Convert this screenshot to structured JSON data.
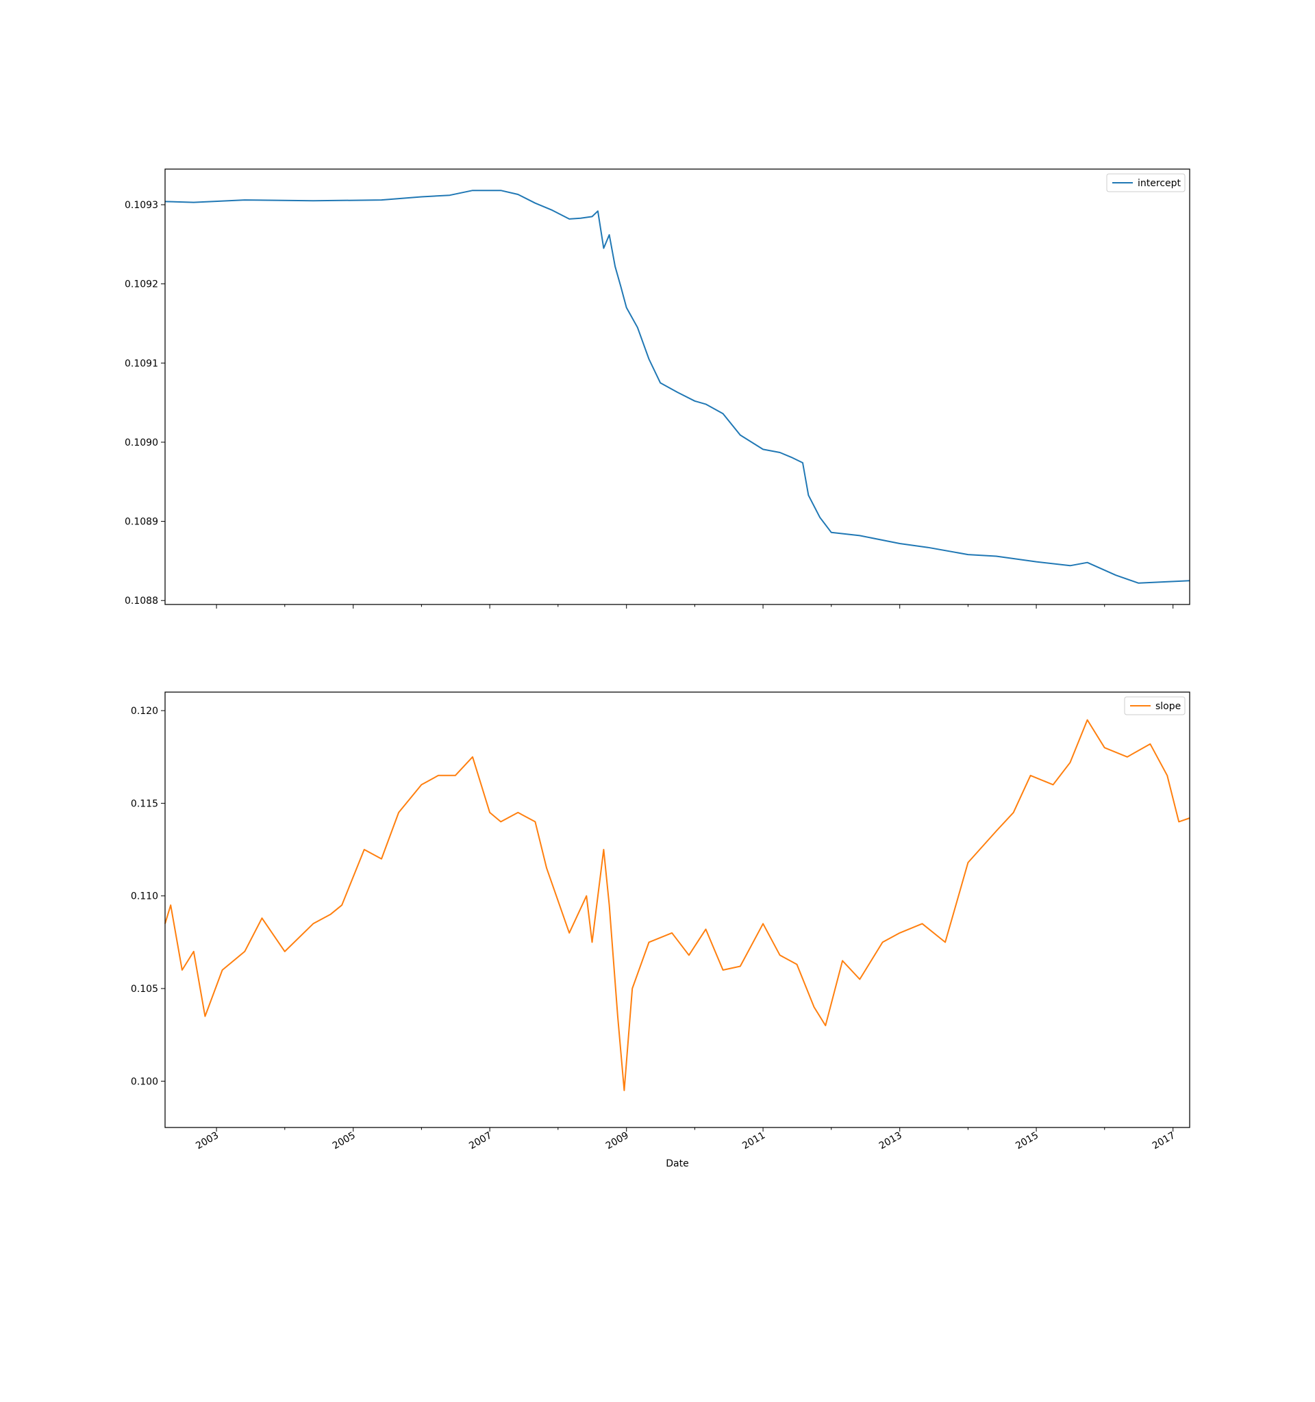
{
  "chart_data": [
    {
      "type": "line",
      "title": "",
      "xlabel": "",
      "ylabel": "",
      "xlim": [
        "2002-04-01",
        "2017-03-31"
      ],
      "ylim": [
        0.108795,
        0.109345
      ],
      "yticks": [
        "0.1088",
        "0.1089",
        "0.1090",
        "0.1091",
        "0.1092",
        "0.1093"
      ],
      "xticks_labels_visible": false,
      "grid": false,
      "legend": {
        "position": "top-right",
        "entries": [
          "intercept"
        ]
      },
      "series": [
        {
          "name": "intercept",
          "color": "#1f77b4",
          "x": [
            "2002-04-01",
            "2002-09-01",
            "2003-06-01",
            "2004-06-01",
            "2005-06-01",
            "2006-01-01",
            "2006-06-01",
            "2006-10-01",
            "2007-03-01",
            "2007-06-01",
            "2007-09-01",
            "2007-12-01",
            "2008-03-01",
            "2008-05-01",
            "2008-07-01",
            "2008-08-01",
            "2008-09-01",
            "2008-10-01",
            "2008-11-01",
            "2008-12-01",
            "2009-01-01",
            "2009-03-01",
            "2009-05-01",
            "2009-07-01",
            "2009-10-01",
            "2010-01-01",
            "2010-03-01",
            "2010-06-01",
            "2010-09-01",
            "2011-01-01",
            "2011-04-01",
            "2011-06-01",
            "2011-08-01",
            "2011-09-01",
            "2011-11-01",
            "2012-01-01",
            "2012-06-01",
            "2013-01-01",
            "2013-06-01",
            "2014-01-01",
            "2014-06-01",
            "2015-01-01",
            "2015-07-01",
            "2015-10-01",
            "2016-03-01",
            "2016-07-01",
            "2017-03-31"
          ],
          "y": [
            0.109304,
            0.109303,
            0.109306,
            0.109305,
            0.109306,
            0.10931,
            0.109312,
            0.109318,
            0.109318,
            0.109313,
            0.109302,
            0.109293,
            0.109282,
            0.109283,
            0.109285,
            0.109292,
            0.109245,
            0.109262,
            0.109222,
            0.109197,
            0.10917,
            0.109145,
            0.109105,
            0.109075,
            0.109063,
            0.109052,
            0.109048,
            0.109036,
            0.109009,
            0.108991,
            0.108987,
            0.108981,
            0.108974,
            0.108933,
            0.108905,
            0.108886,
            0.108882,
            0.108872,
            0.108867,
            0.108858,
            0.108856,
            0.108849,
            0.108844,
            0.108848,
            0.108832,
            0.108822,
            0.108825
          ]
        }
      ]
    },
    {
      "type": "line",
      "title": "",
      "xlabel": "Date",
      "ylabel": "",
      "xlim": [
        "2002-04-01",
        "2017-03-31"
      ],
      "ylim": [
        0.0975,
        0.121
      ],
      "yticks": [
        "0.100",
        "0.105",
        "0.110",
        "0.115",
        "0.120"
      ],
      "xticks": [
        "2003",
        "2005",
        "2007",
        "2009",
        "2011",
        "2013",
        "2015",
        "2017"
      ],
      "grid": false,
      "legend": {
        "position": "top-right",
        "entries": [
          "slope"
        ]
      },
      "series": [
        {
          "name": "slope",
          "color": "#ff7f0e",
          "x": [
            "2002-04-01",
            "2002-05-01",
            "2002-07-01",
            "2002-09-01",
            "2002-11-01",
            "2003-02-01",
            "2003-06-01",
            "2003-09-01",
            "2004-01-01",
            "2004-06-01",
            "2004-09-01",
            "2004-11-01",
            "2005-03-01",
            "2005-06-01",
            "2005-09-01",
            "2006-01-01",
            "2006-04-01",
            "2006-07-01",
            "2006-10-01",
            "2007-01-01",
            "2007-03-01",
            "2007-06-01",
            "2007-09-01",
            "2007-11-01",
            "2008-03-01",
            "2008-06-01",
            "2008-07-01",
            "2008-09-01",
            "2008-10-01",
            "2008-11-15",
            "2008-12-20",
            "2009-02-01",
            "2009-05-01",
            "2009-09-01",
            "2009-12-01",
            "2010-03-01",
            "2010-06-01",
            "2010-09-01",
            "2011-01-01",
            "2011-04-01",
            "2011-07-01",
            "2011-10-01",
            "2011-12-01",
            "2012-03-01",
            "2012-06-01",
            "2012-10-01",
            "2013-01-01",
            "2013-05-01",
            "2013-09-01",
            "2014-01-01",
            "2014-06-01",
            "2014-09-01",
            "2014-12-01",
            "2015-04-01",
            "2015-07-01",
            "2015-10-01",
            "2016-01-01",
            "2016-05-01",
            "2016-09-01",
            "2016-12-01",
            "2017-02-01",
            "2017-03-31"
          ],
          "y": [
            0.1085,
            0.1095,
            0.106,
            0.107,
            0.1035,
            0.106,
            0.107,
            0.1088,
            0.107,
            0.1085,
            0.109,
            0.1095,
            0.1125,
            0.112,
            0.1145,
            0.116,
            0.1165,
            0.1165,
            0.1175,
            0.1145,
            0.114,
            0.1145,
            0.114,
            0.1115,
            0.108,
            0.11,
            0.1075,
            0.1125,
            0.1095,
            0.1035,
            0.0995,
            0.105,
            0.1075,
            0.108,
            0.1068,
            0.1082,
            0.106,
            0.1062,
            0.1085,
            0.1068,
            0.1063,
            0.104,
            0.103,
            0.1065,
            0.1055,
            0.1075,
            0.108,
            0.1085,
            0.1075,
            0.1118,
            0.1135,
            0.1145,
            0.1165,
            0.116,
            0.1172,
            0.1195,
            0.118,
            0.1175,
            0.1182,
            0.1165,
            0.114,
            0.1142
          ]
        }
      ]
    }
  ]
}
